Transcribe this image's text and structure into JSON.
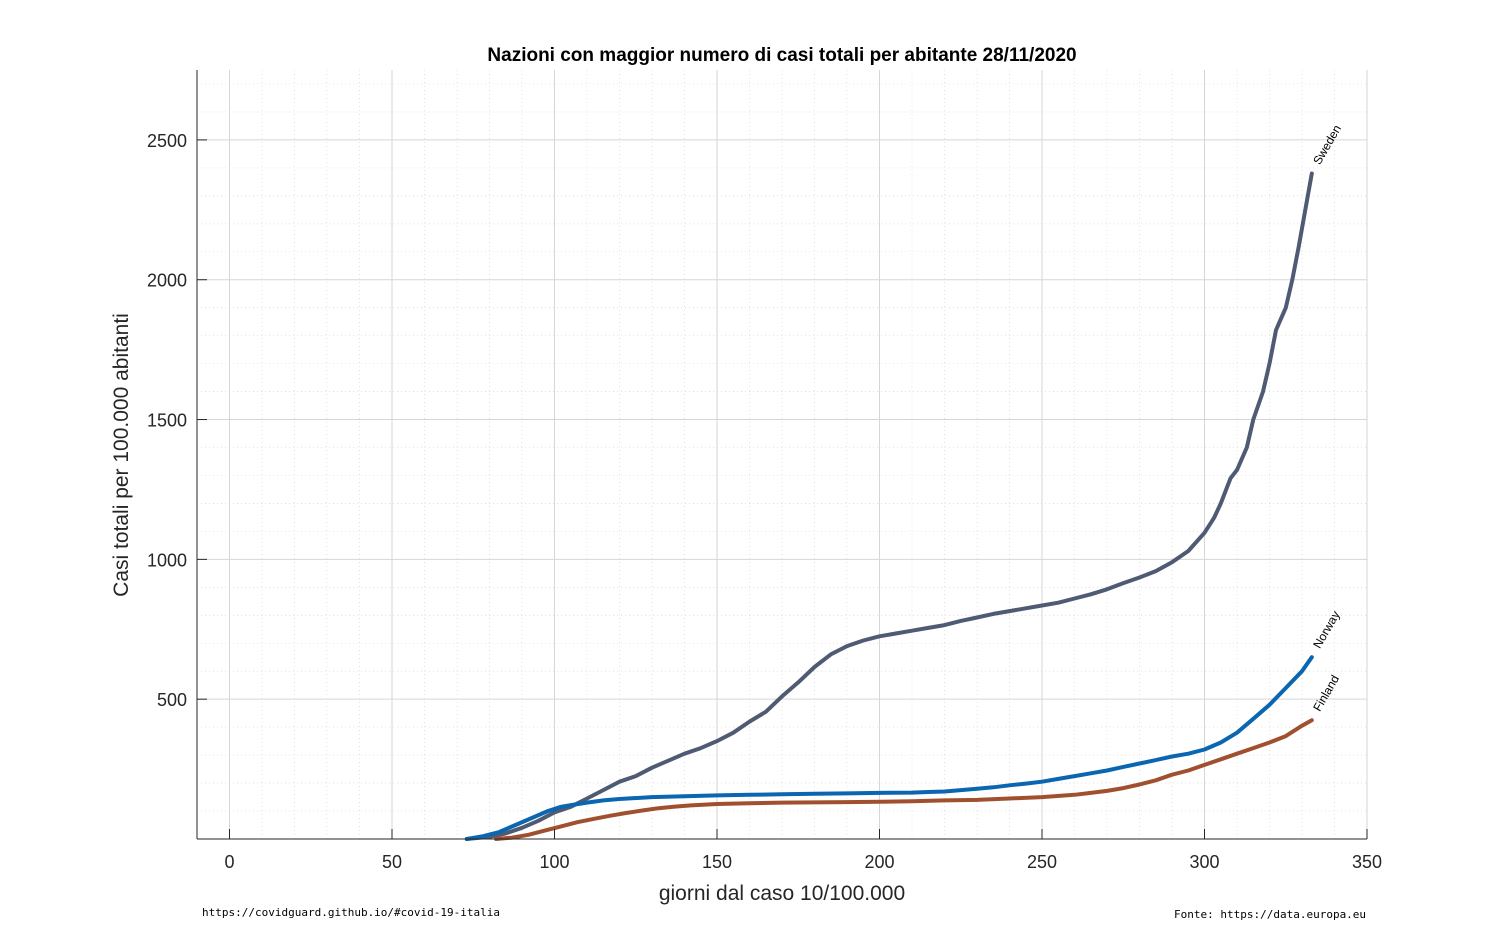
{
  "chart_data": {
    "type": "line",
    "title": "Nazioni con maggior numero di casi totali per abitante 28/11/2020",
    "xlabel": "giorni dal caso 10/100.000",
    "ylabel": "Casi totali per 100.000 abitanti",
    "xlim": [
      -10,
      350
    ],
    "ylim": [
      0,
      2750
    ],
    "x_ticks": [
      0,
      50,
      100,
      150,
      200,
      250,
      300,
      350
    ],
    "y_ticks": [
      500,
      1000,
      1500,
      2000,
      2500
    ],
    "grid": true,
    "minor_grid": true,
    "legend": "none (series labeled at line ends)",
    "series": [
      {
        "name": "Sweden",
        "color": "#4f5a73",
        "points": [
          [
            73,
            0
          ],
          [
            80,
            8
          ],
          [
            85,
            20
          ],
          [
            90,
            40
          ],
          [
            95,
            65
          ],
          [
            100,
            95
          ],
          [
            105,
            115
          ],
          [
            110,
            145
          ],
          [
            115,
            175
          ],
          [
            120,
            205
          ],
          [
            125,
            225
          ],
          [
            130,
            255
          ],
          [
            135,
            280
          ],
          [
            140,
            305
          ],
          [
            145,
            325
          ],
          [
            150,
            350
          ],
          [
            155,
            380
          ],
          [
            160,
            420
          ],
          [
            165,
            455
          ],
          [
            170,
            510
          ],
          [
            175,
            560
          ],
          [
            180,
            615
          ],
          [
            185,
            660
          ],
          [
            190,
            690
          ],
          [
            195,
            710
          ],
          [
            200,
            725
          ],
          [
            205,
            735
          ],
          [
            210,
            745
          ],
          [
            215,
            755
          ],
          [
            220,
            765
          ],
          [
            225,
            780
          ],
          [
            230,
            792
          ],
          [
            235,
            805
          ],
          [
            240,
            815
          ],
          [
            245,
            825
          ],
          [
            250,
            835
          ],
          [
            255,
            845
          ],
          [
            260,
            860
          ],
          [
            265,
            875
          ],
          [
            270,
            893
          ],
          [
            275,
            915
          ],
          [
            280,
            935
          ],
          [
            285,
            958
          ],
          [
            290,
            990
          ],
          [
            295,
            1030
          ],
          [
            300,
            1095
          ],
          [
            303,
            1150
          ],
          [
            305,
            1200
          ],
          [
            308,
            1290
          ],
          [
            310,
            1320
          ],
          [
            313,
            1400
          ],
          [
            315,
            1500
          ],
          [
            318,
            1600
          ],
          [
            320,
            1700
          ],
          [
            322,
            1820
          ],
          [
            325,
            1900
          ],
          [
            327,
            2000
          ],
          [
            329,
            2120
          ],
          [
            331,
            2250
          ],
          [
            333,
            2380
          ]
        ]
      },
      {
        "name": "Norway",
        "color": "#0a66b0",
        "points": [
          [
            73,
            0
          ],
          [
            78,
            10
          ],
          [
            83,
            25
          ],
          [
            88,
            50
          ],
          [
            93,
            75
          ],
          [
            98,
            100
          ],
          [
            102,
            115
          ],
          [
            106,
            123
          ],
          [
            110,
            130
          ],
          [
            115,
            138
          ],
          [
            120,
            143
          ],
          [
            130,
            150
          ],
          [
            140,
            153
          ],
          [
            150,
            156
          ],
          [
            160,
            158
          ],
          [
            170,
            160
          ],
          [
            180,
            162
          ],
          [
            190,
            163
          ],
          [
            200,
            165
          ],
          [
            210,
            166
          ],
          [
            215,
            168
          ],
          [
            220,
            170
          ],
          [
            225,
            175
          ],
          [
            230,
            180
          ],
          [
            235,
            185
          ],
          [
            240,
            192
          ],
          [
            245,
            198
          ],
          [
            250,
            205
          ],
          [
            255,
            215
          ],
          [
            260,
            225
          ],
          [
            265,
            235
          ],
          [
            270,
            245
          ],
          [
            275,
            258
          ],
          [
            280,
            270
          ],
          [
            285,
            282
          ],
          [
            290,
            295
          ],
          [
            295,
            305
          ],
          [
            300,
            320
          ],
          [
            305,
            345
          ],
          [
            310,
            380
          ],
          [
            315,
            430
          ],
          [
            320,
            480
          ],
          [
            325,
            540
          ],
          [
            330,
            600
          ],
          [
            333,
            650
          ]
        ]
      },
      {
        "name": "Finland",
        "color": "#a0502f",
        "points": [
          [
            82,
            0
          ],
          [
            87,
            5
          ],
          [
            92,
            15
          ],
          [
            97,
            30
          ],
          [
            102,
            45
          ],
          [
            107,
            60
          ],
          [
            112,
            72
          ],
          [
            117,
            83
          ],
          [
            122,
            93
          ],
          [
            127,
            102
          ],
          [
            132,
            110
          ],
          [
            137,
            116
          ],
          [
            142,
            120
          ],
          [
            150,
            125
          ],
          [
            160,
            128
          ],
          [
            170,
            130
          ],
          [
            180,
            131
          ],
          [
            190,
            132
          ],
          [
            200,
            133
          ],
          [
            210,
            135
          ],
          [
            220,
            138
          ],
          [
            230,
            140
          ],
          [
            240,
            145
          ],
          [
            250,
            150
          ],
          [
            260,
            158
          ],
          [
            265,
            165
          ],
          [
            270,
            172
          ],
          [
            275,
            182
          ],
          [
            280,
            195
          ],
          [
            285,
            210
          ],
          [
            290,
            230
          ],
          [
            295,
            245
          ],
          [
            300,
            265
          ],
          [
            305,
            285
          ],
          [
            310,
            305
          ],
          [
            315,
            325
          ],
          [
            320,
            345
          ],
          [
            325,
            368
          ],
          [
            330,
            405
          ],
          [
            333,
            425
          ]
        ]
      }
    ]
  },
  "footer": {
    "left": "https://covidguard.github.io/#covid-19-italia",
    "right": "Fonte: https://data.europa.eu"
  }
}
